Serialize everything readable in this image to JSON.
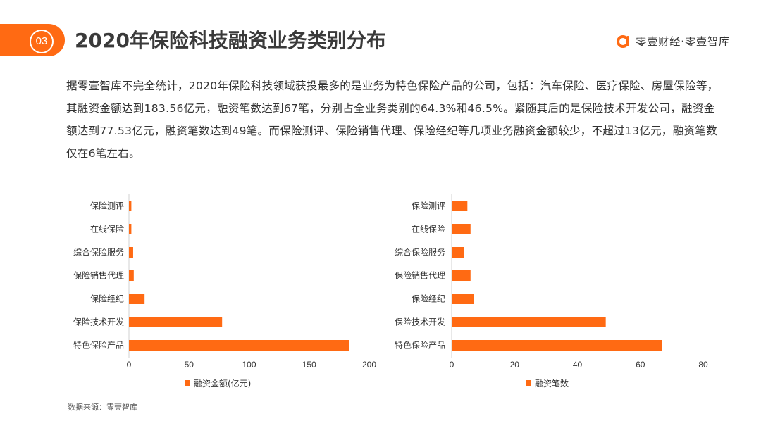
{
  "header": {
    "section_number": "03",
    "title": "2020年保险科技融资业务类别分布",
    "brand_name": "零壹财经·零壹智库",
    "brand_logo_icon": "brand-a-logo-icon"
  },
  "intro_text": "据零壹智库不完全统计，2020年保险科技领域获投最多的是业务为特色保险产品的公司，包括：汽车保险、医疗保险、房屋保险等，其融资金额达到183.56亿元，融资笔数达到67笔，分别占全业务类别的64.3%和46.5%。紧随其后的是保险技术开发公司，融资金额达到77.53亿元，融资笔数达到49笔。而保险测评、保险销售代理、保险经纪等几项业务融资金额较少，不超过13亿元，融资笔数仅在6笔左右。",
  "source": "数据来源：零壹智库",
  "colors": {
    "accent": "#ff6a13",
    "bar": "#ff6a13",
    "axis": "#d0d0d0",
    "text": "#333333"
  },
  "chart_data": [
    {
      "type": "bar",
      "orientation": "horizontal",
      "categories": [
        "保险测评",
        "在线保险",
        "综合保险服务",
        "保险销售代理",
        "保险经纪",
        "保险技术开发",
        "特色保险产品"
      ],
      "series": [
        {
          "name": "融资金额(亿元)",
          "values": [
            2,
            2,
            3.5,
            4,
            13,
            77.53,
            183.56
          ]
        }
      ],
      "xlim": [
        0,
        200
      ],
      "xticks": [
        "0",
        "50",
        "100",
        "150",
        "200"
      ],
      "grid": false,
      "legend": "bottom"
    },
    {
      "type": "bar",
      "orientation": "horizontal",
      "categories": [
        "保险测评",
        "在线保险",
        "综合保险服务",
        "保险销售代理",
        "保险经纪",
        "保险技术开发",
        "特色保险产品"
      ],
      "series": [
        {
          "name": "融资笔数",
          "values": [
            5,
            6,
            4,
            6,
            7,
            49,
            67
          ]
        }
      ],
      "xlim": [
        0,
        80
      ],
      "xticks": [
        "0",
        "20",
        "40",
        "60",
        "80"
      ],
      "grid": false,
      "legend": "bottom"
    }
  ]
}
